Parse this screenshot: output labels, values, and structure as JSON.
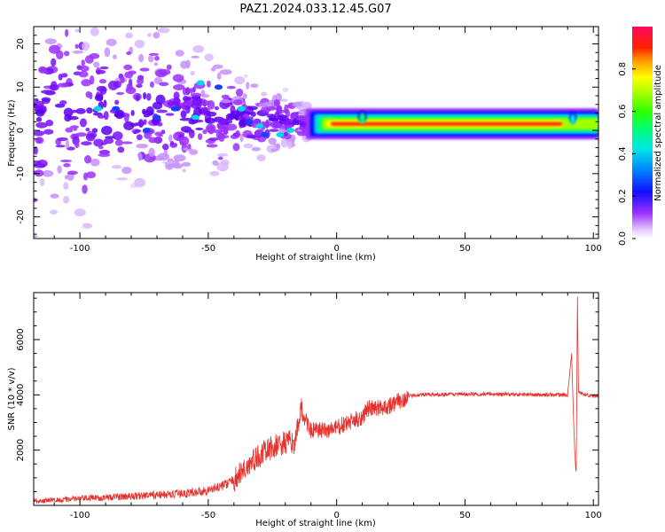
{
  "title": "PAZ1.2024.033.12.45.G07",
  "chart_data": [
    {
      "type": "heatmap",
      "xlabel": "Height of straight line (km)",
      "ylabel": "Frequency (Hz)",
      "xlim": [
        -118,
        102
      ],
      "ylim": [
        -25,
        24
      ],
      "xticks": [
        -100,
        -50,
        0,
        50,
        100
      ],
      "yticks": [
        -20,
        -10,
        0,
        10,
        20
      ],
      "colorbar": {
        "label": "Normalized spectral amplitude",
        "range": [
          0,
          1
        ],
        "ticks": [
          0.0,
          0.2,
          0.4,
          0.6,
          0.8
        ],
        "colormap": "hsv-like (violet to red)"
      },
      "features": {
        "tone_band": {
          "x_start": -12,
          "x_end": 102,
          "frequency_hz": 1.5
        },
        "scatter_region": {
          "x_start": -118,
          "x_end": -15,
          "frequency_hz_range": [
            -25,
            24
          ]
        }
      }
    },
    {
      "type": "line",
      "xlabel": "Height of straight line (km)",
      "ylabel": "SNR (10 * v/v)",
      "xlim": [
        -118,
        102
      ],
      "ylim": [
        0,
        7700
      ],
      "xticks": [
        -100,
        -50,
        0,
        50,
        100
      ],
      "yticks": [
        2000,
        4000,
        6000
      ],
      "series": [
        {
          "color": "#e8302c",
          "points": [
            [
              -118,
              150
            ],
            [
              -100,
              250
            ],
            [
              -80,
              330
            ],
            [
              -60,
              420
            ],
            [
              -50,
              550
            ],
            [
              -45,
              700
            ],
            [
              -40,
              900
            ],
            [
              -35,
              1400
            ],
            [
              -30,
              1800
            ],
            [
              -25,
              2100
            ],
            [
              -20,
              2250
            ],
            [
              -16,
              2300
            ],
            [
              -14,
              3500
            ],
            [
              -10,
              2700
            ],
            [
              -5,
              2700
            ],
            [
              0,
              2800
            ],
            [
              5,
              3000
            ],
            [
              10,
              3200
            ],
            [
              12,
              3500
            ],
            [
              15,
              3500
            ],
            [
              20,
              3600
            ],
            [
              25,
              3800
            ],
            [
              30,
              4000
            ],
            [
              40,
              4020
            ],
            [
              60,
              4030
            ],
            [
              80,
              4000
            ],
            [
              90,
              4000
            ],
            [
              91.5,
              5500
            ],
            [
              92.5,
              2500
            ],
            [
              93.3,
              1000
            ],
            [
              93.8,
              7500
            ],
            [
              94.2,
              4100
            ],
            [
              97,
              4000
            ],
            [
              102,
              3950
            ]
          ]
        }
      ]
    }
  ]
}
